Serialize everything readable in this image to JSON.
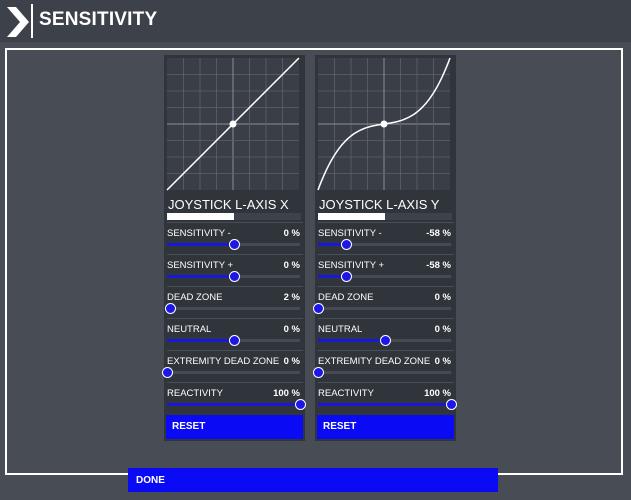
{
  "header": {
    "title": "SENSITIVITY"
  },
  "panels": [
    {
      "title": "JOYSTICK L-AXIS X",
      "meter_fill_pct": 50,
      "curve": "linear",
      "rows": [
        {
          "label": "SENSITIVITY -",
          "value": "0 %",
          "pos": 0.5
        },
        {
          "label": "SENSITIVITY +",
          "value": "0 %",
          "pos": 0.5
        },
        {
          "label": "DEAD ZONE",
          "value": "2 %",
          "pos": 0.02
        },
        {
          "label": "NEUTRAL",
          "value": "0 %",
          "pos": 0.5
        },
        {
          "label": "EXTREMITY DEAD ZONE",
          "value": "0 %",
          "pos": 0.0
        },
        {
          "label": "REACTIVITY",
          "value": "100 %",
          "pos": 1.0
        }
      ],
      "reset_label": "RESET"
    },
    {
      "title": "JOYSTICK L-AXIS Y",
      "meter_fill_pct": 50,
      "curve": "cubic",
      "rows": [
        {
          "label": "SENSITIVITY -",
          "value": "-58 %",
          "pos": 0.21
        },
        {
          "label": "SENSITIVITY +",
          "value": "-58 %",
          "pos": 0.21
        },
        {
          "label": "DEAD ZONE",
          "value": "0 %",
          "pos": 0.0
        },
        {
          "label": "NEUTRAL",
          "value": "0 %",
          "pos": 0.5
        },
        {
          "label": "EXTREMITY DEAD ZONE",
          "value": "0 %",
          "pos": 0.0
        },
        {
          "label": "REACTIVITY",
          "value": "100 %",
          "pos": 1.0
        }
      ],
      "reset_label": "RESET"
    }
  ],
  "footer": {
    "done_label": "DONE"
  },
  "colors": {
    "background": "#474c55",
    "panel": "#30343b",
    "accent_blue": "#0a0af5",
    "slider_blue": "#1a18d6",
    "graph_bg": "#3a3f47",
    "white": "#ffffff"
  }
}
